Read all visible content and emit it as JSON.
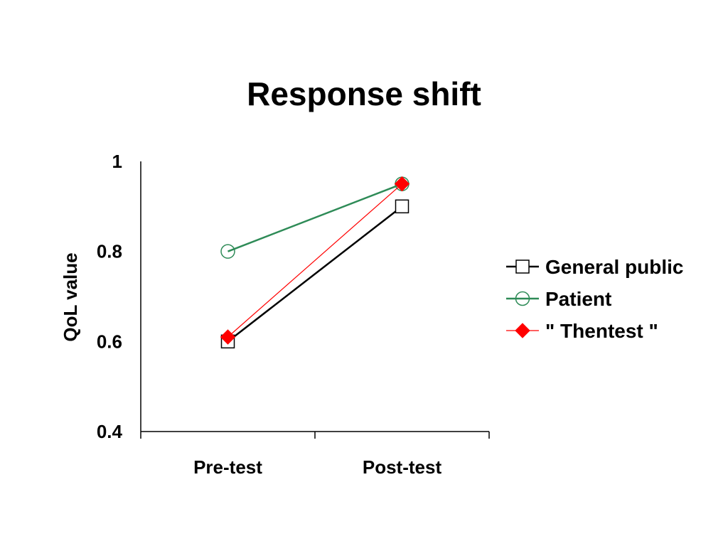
{
  "chart_data": {
    "type": "line",
    "title": "Response shift",
    "xlabel": "",
    "ylabel": "QoL value",
    "categories": [
      "Pre-test",
      "Post-test"
    ],
    "ylim": [
      0.4,
      1
    ],
    "yticks": [
      "0.4",
      "0.6",
      "0.8",
      "1"
    ],
    "legend_position": "right",
    "grid": false,
    "series": [
      {
        "name": "General public",
        "values": [
          0.6,
          0.9
        ],
        "color": "#000000",
        "marker": "square-open"
      },
      {
        "name": "Patient",
        "values": [
          0.8,
          0.95
        ],
        "color": "#2e8b57",
        "marker": "circle-open"
      },
      {
        "name": "\" Thentest \"",
        "values": [
          0.61,
          0.95
        ],
        "color": "#ff0000",
        "marker": "diamond-filled"
      }
    ]
  }
}
